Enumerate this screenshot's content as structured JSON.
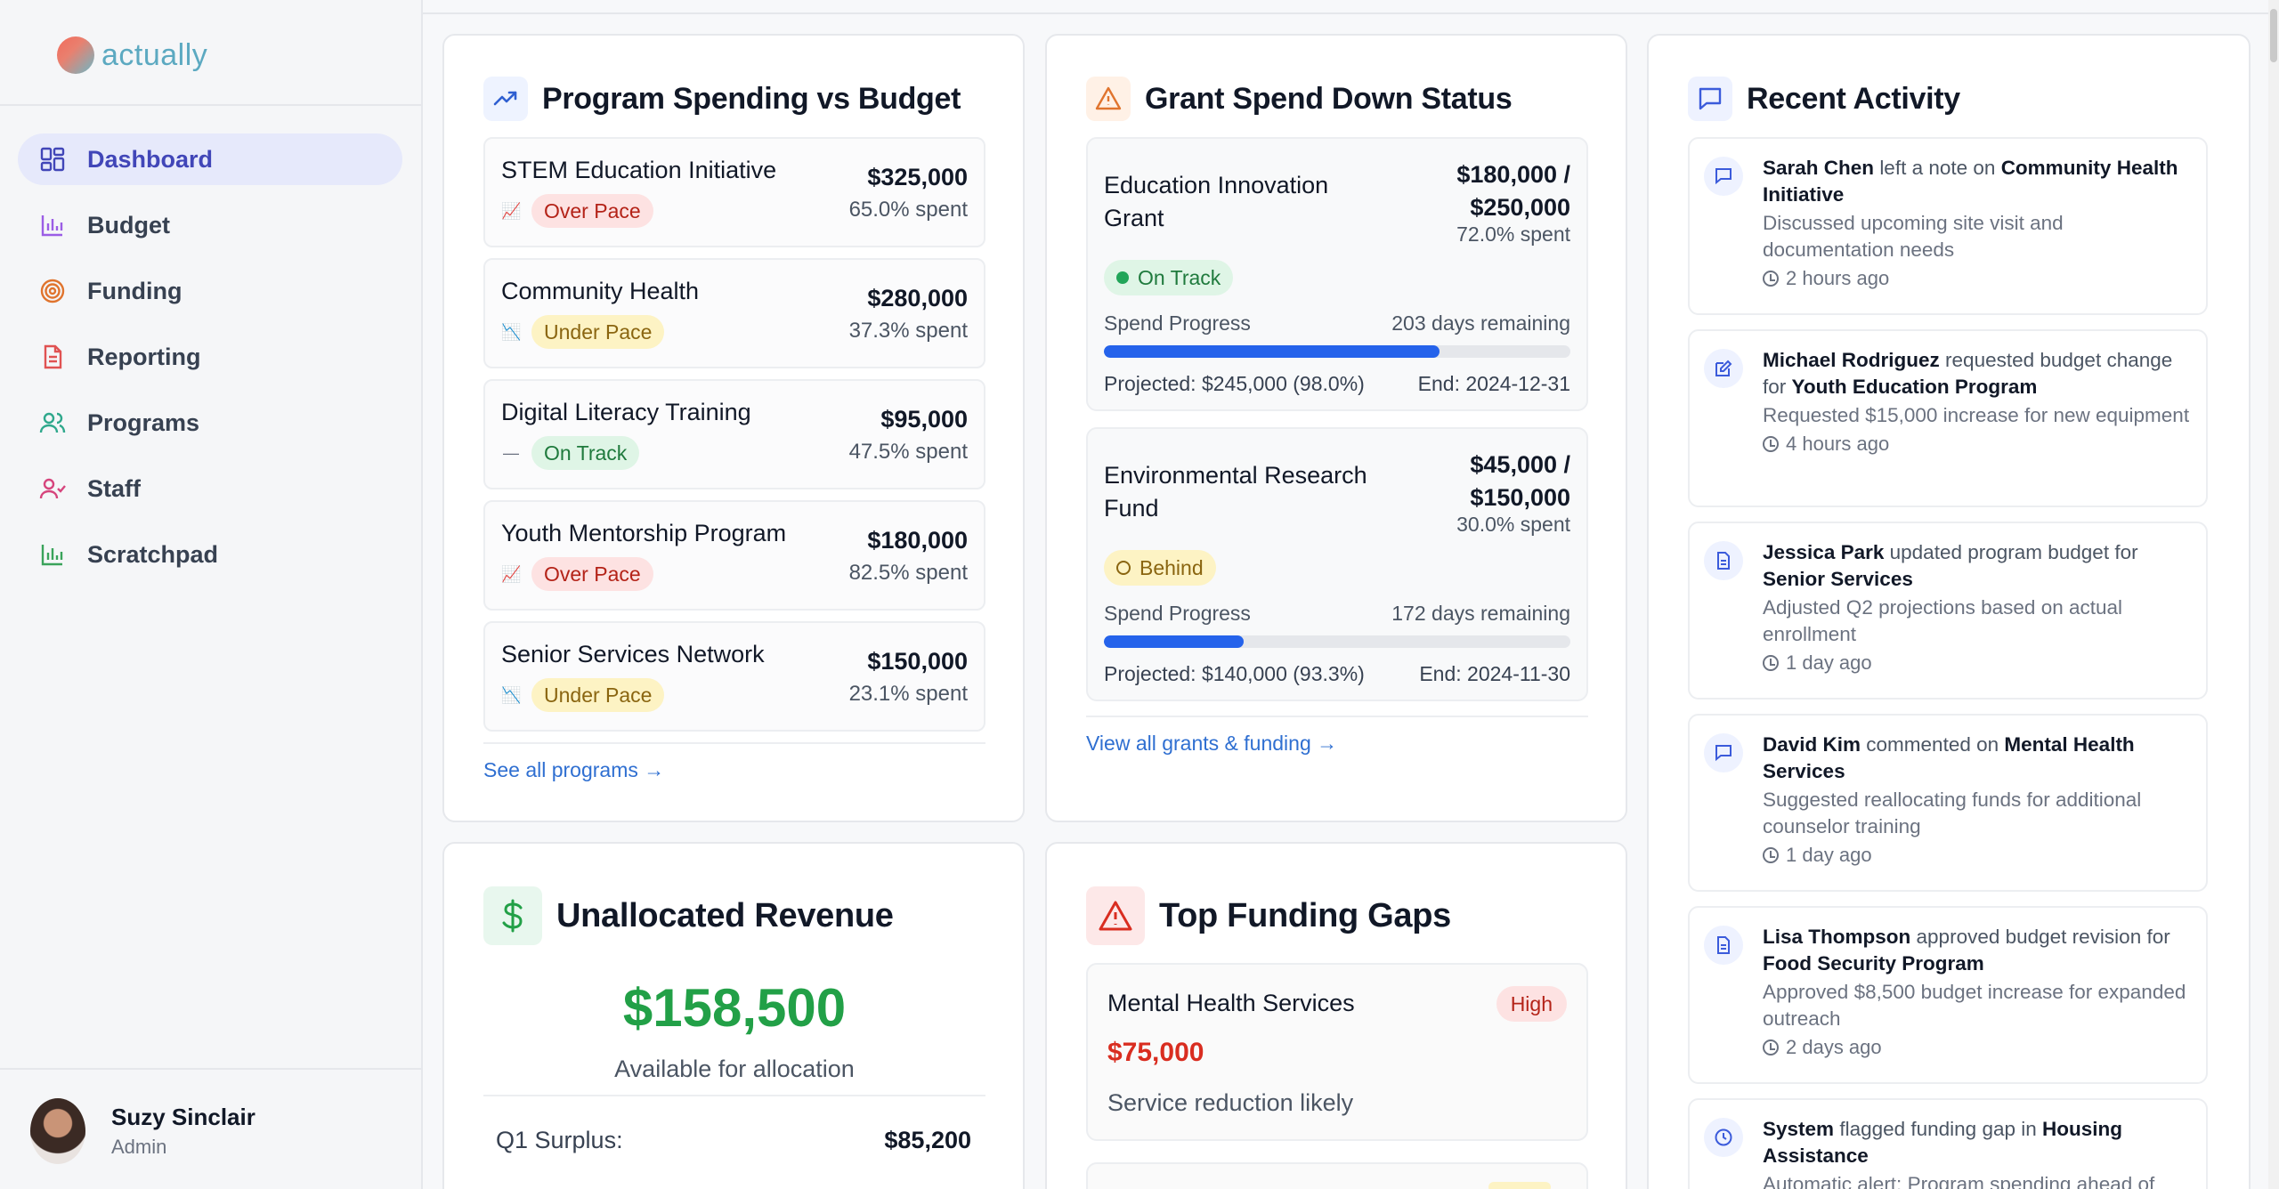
{
  "app": {
    "logo_text": "actually"
  },
  "sidebar": {
    "items": [
      {
        "label": "Dashboard",
        "icon": "dashboard-grid-icon",
        "active": true,
        "color": "#4146b8"
      },
      {
        "label": "Budget",
        "icon": "bar-chart-icon",
        "color": "#9b5de5"
      },
      {
        "label": "Funding",
        "icon": "target-icon",
        "color": "#e0742e"
      },
      {
        "label": "Reporting",
        "icon": "document-icon",
        "color": "#e05252"
      },
      {
        "label": "Programs",
        "icon": "users-icon",
        "color": "#2fa88c"
      },
      {
        "label": "Staff",
        "icon": "user-icon",
        "color": "#d6457d"
      },
      {
        "label": "Scratchpad",
        "icon": "bar-chart-icon",
        "color": "#3aa35b"
      }
    ],
    "user": {
      "name": "Suzy Sinclair",
      "role": "Admin"
    }
  },
  "program_spending": {
    "title": "Program Spending vs Budget",
    "items": [
      {
        "name": "STEM Education Initiative",
        "amount": "$325,000",
        "spent": "65.0% spent",
        "status": "Over Pace",
        "kind": "over",
        "trend_icon": "📈"
      },
      {
        "name": "Community Health",
        "amount": "$280,000",
        "spent": "37.3% spent",
        "status": "Under Pace",
        "kind": "under",
        "trend_icon": "📉"
      },
      {
        "name": "Digital Literacy Training",
        "amount": "$95,000",
        "spent": "47.5% spent",
        "status": "On Track",
        "kind": "on",
        "trend_icon": "—"
      },
      {
        "name": "Youth Mentorship Program",
        "amount": "$180,000",
        "spent": "82.5% spent",
        "status": "Over Pace",
        "kind": "over",
        "trend_icon": "📈"
      },
      {
        "name": "Senior Services Network",
        "amount": "$150,000",
        "spent": "23.1% spent",
        "status": "Under Pace",
        "kind": "under",
        "trend_icon": "📉"
      }
    ],
    "link": "See all programs →"
  },
  "grants": {
    "title": "Grant Spend Down Status",
    "items": [
      {
        "name": "Education Innovation Grant",
        "amount_line1": "$180,000 /",
        "amount_line2": "$250,000",
        "spent": "72.0% spent",
        "status": "On Track",
        "kind": "on",
        "progress_label": "Spend Progress",
        "days": "203 days remaining",
        "progress": 0.72,
        "projected": "Projected: $245,000 (98.0%)",
        "end": "End: 2024-12-31"
      },
      {
        "name": "Environmental Research Fund",
        "amount_line1": "$45,000 /",
        "amount_line2": "$150,000",
        "spent": "30.0% spent",
        "status": "Behind",
        "kind": "behind",
        "progress_label": "Spend Progress",
        "days": "172 days remaining",
        "progress": 0.3,
        "projected": "Projected: $140,000 (93.3%)",
        "end": "End: 2024-11-30"
      }
    ],
    "link": "View all grants & funding →"
  },
  "activity": {
    "title": "Recent Activity",
    "items": [
      {
        "actor": "Sarah Chen",
        "verb": "left a note on",
        "target": "Community Health Initiative",
        "desc": "Discussed upcoming site visit and documentation needs",
        "time": "2 hours ago",
        "icon": "comment-icon"
      },
      {
        "actor": "Michael Rodriguez",
        "verb": "requested budget change for",
        "target": "Youth Education Program",
        "desc": "Requested $15,000 increase for new equipment",
        "time": "4 hours ago",
        "icon": "edit-icon"
      },
      {
        "actor": "Jessica Park",
        "verb": "updated program budget for",
        "target": "Senior Services",
        "desc": "Adjusted Q2 projections based on actual enrollment",
        "time": "1 day ago",
        "icon": "document-icon"
      },
      {
        "actor": "David Kim",
        "verb": "commented on",
        "target": "Mental Health Services",
        "desc": "Suggested reallocating funds for additional counselor training",
        "time": "1 day ago",
        "icon": "comment-icon"
      },
      {
        "actor": "Lisa Thompson",
        "verb": "approved budget revision for",
        "target": "Food Security Program",
        "desc": "Approved $8,500 budget increase for expanded outreach",
        "time": "2 days ago",
        "icon": "document-icon"
      },
      {
        "actor": "System",
        "verb": "flagged funding gap in",
        "target": "Housing Assistance",
        "desc": "Automatic alert: Program spending ahead of",
        "time": "",
        "icon": "clock-icon"
      }
    ]
  },
  "revenue": {
    "title": "Unallocated Revenue",
    "amount": "$158,500",
    "subtitle": "Available for allocation",
    "rows": [
      {
        "label": "Q1 Surplus:",
        "value": "$85,200"
      }
    ]
  },
  "funding_gaps": {
    "title": "Top Funding Gaps",
    "items": [
      {
        "name": "Mental Health Services",
        "severity": "High",
        "amount": "$75,000",
        "note": "Service reduction likely"
      }
    ]
  }
}
